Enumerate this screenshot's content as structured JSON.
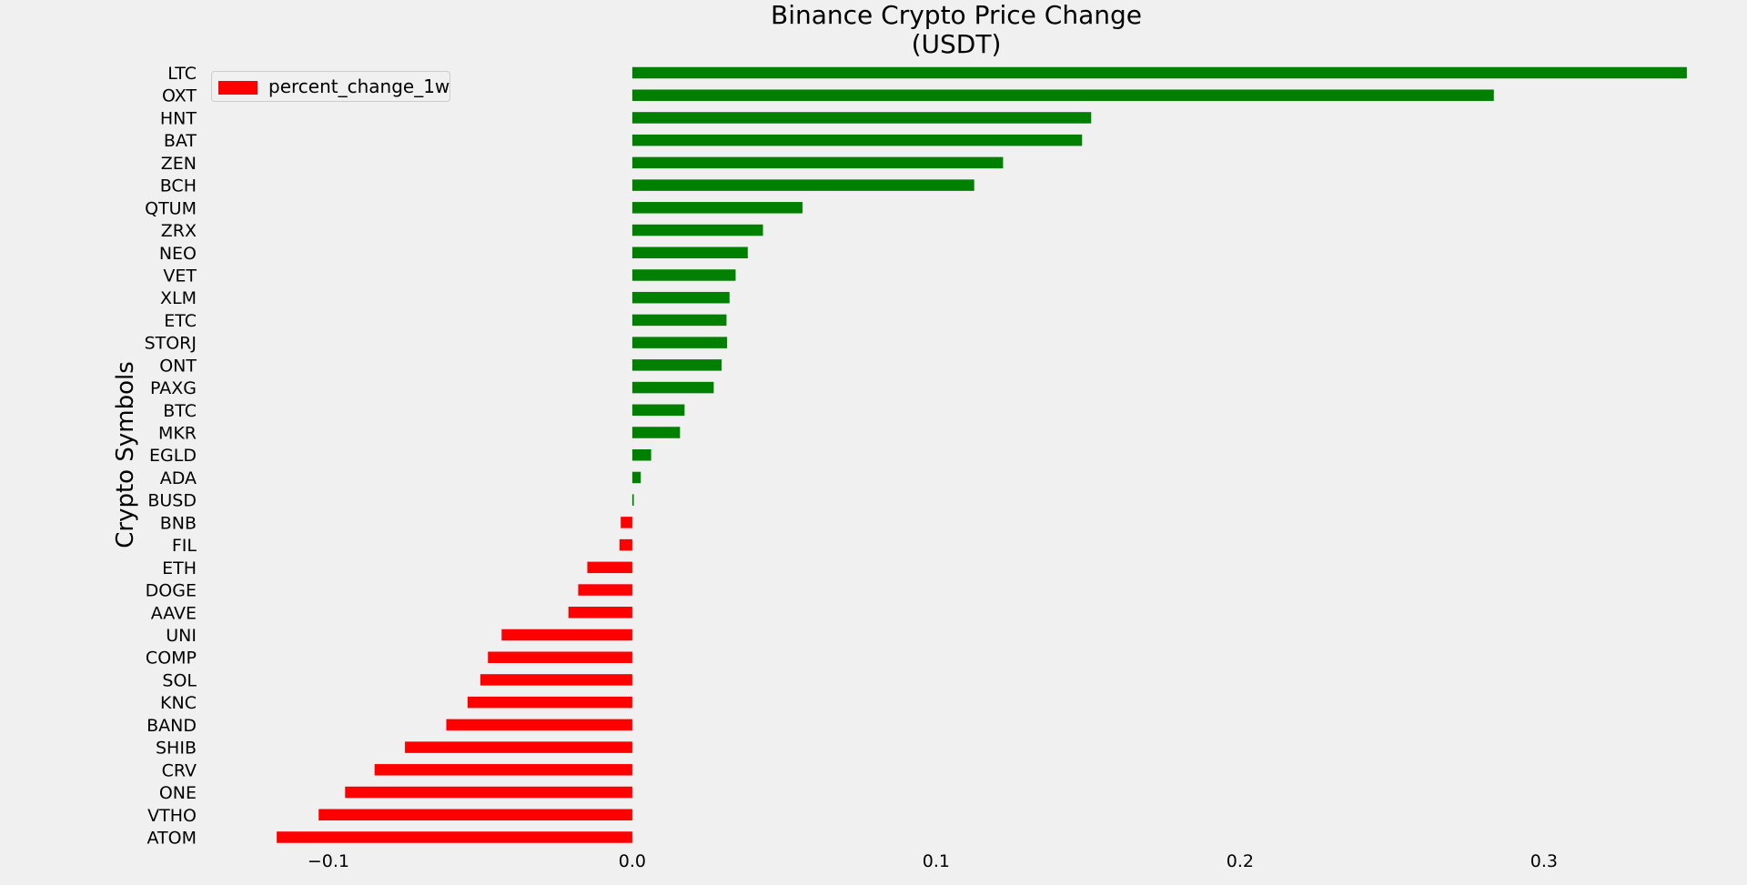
{
  "chart_data": {
    "type": "bar",
    "orientation": "horizontal",
    "title": "Binance Crypto Price Change\n(USDT)",
    "title_lines": [
      "Binance Crypto Price Change",
      "(USDT)"
    ],
    "ylabel": "Crypto Symbols",
    "xlabel": "",
    "xlim": [
      -0.135,
      0.365
    ],
    "xticks": [
      -0.1,
      0.0,
      0.1,
      0.2,
      0.3
    ],
    "xtick_labels": [
      "−0.1",
      "0.0",
      "0.1",
      "0.2",
      "0.3"
    ],
    "grid": false,
    "legend": {
      "position": "top-left",
      "entries": [
        "percent_change_1w"
      ]
    },
    "positive_color": "#008000",
    "negative_color": "#ff0000",
    "legend_color": "#ff0000",
    "background_color": "#f0f0f0",
    "categories": [
      "LTC",
      "OXT",
      "HNT",
      "BAT",
      "ZEN",
      "BCH",
      "QTUM",
      "ZRX",
      "NEO",
      "VET",
      "XLM",
      "ETC",
      "STORJ",
      "ONT",
      "PAXG",
      "BTC",
      "MKR",
      "EGLD",
      "ADA",
      "BUSD",
      "BNB",
      "FIL",
      "ETH",
      "DOGE",
      "AAVE",
      "UNI",
      "COMP",
      "SOL",
      "KNC",
      "BAND",
      "SHIB",
      "CRV",
      "ONE",
      "VTHO",
      "ATOM"
    ],
    "series": [
      {
        "name": "percent_change_1w",
        "values": [
          0.347,
          0.2835,
          0.151,
          0.148,
          0.122,
          0.1125,
          0.056,
          0.043,
          0.038,
          0.034,
          0.032,
          0.031,
          0.0312,
          0.0294,
          0.0268,
          0.0172,
          0.0157,
          0.0062,
          0.0028,
          0.0005,
          -0.0038,
          -0.0042,
          -0.0148,
          -0.0178,
          -0.021,
          -0.043,
          -0.0475,
          -0.05,
          -0.0542,
          -0.0612,
          -0.0748,
          -0.0848,
          -0.0945,
          -0.1032,
          -0.117
        ]
      }
    ]
  }
}
